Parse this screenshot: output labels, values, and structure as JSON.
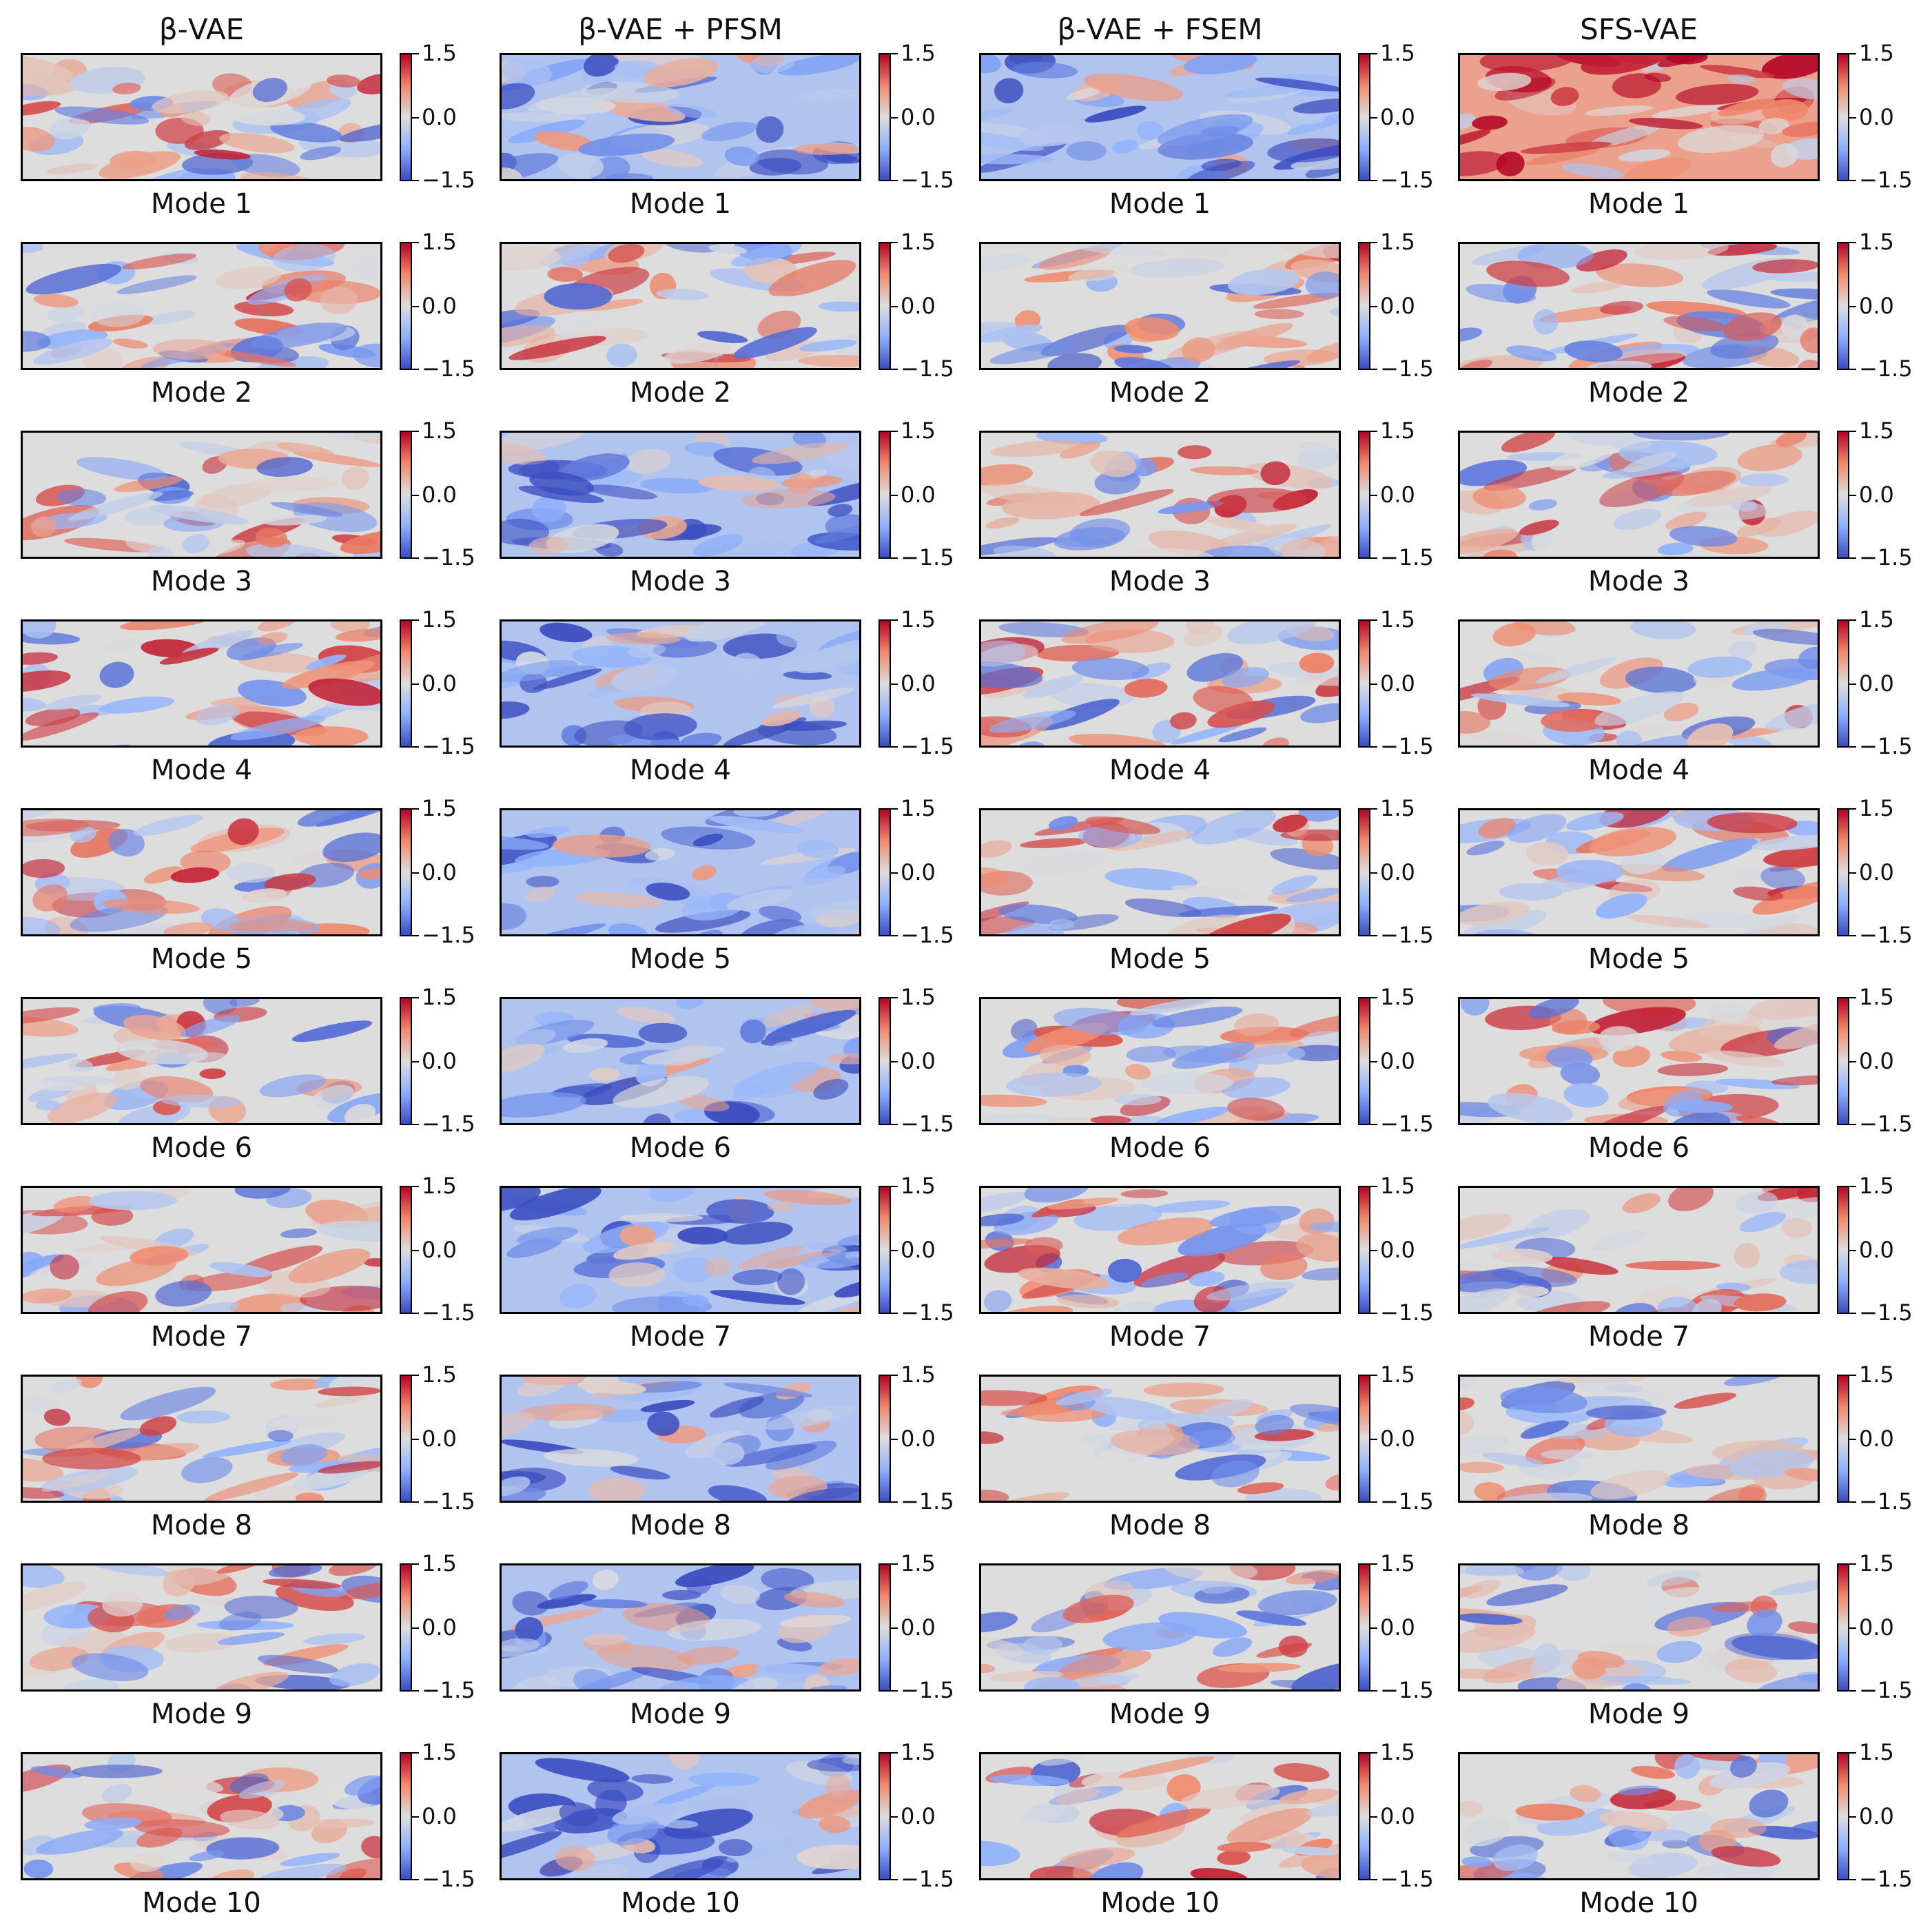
{
  "columns": [
    "β-VAE",
    "β-VAE + PFSM",
    "β-VAE + FSEM",
    "SFS-VAE"
  ],
  "mode_labels": [
    "Mode 1",
    "Mode 2",
    "Mode 3",
    "Mode 4",
    "Mode 5",
    "Mode 6",
    "Mode 7",
    "Mode 8",
    "Mode 9",
    "Mode 10"
  ],
  "colorbar": {
    "ticks": [
      "1.5",
      "0.0",
      "−1.5"
    ],
    "vmin": -1.5,
    "vmax": 1.5,
    "colormap": "coolwarm"
  },
  "chart_data": {
    "type": "heatmap",
    "grid": {
      "columns": 4,
      "rows": 10
    },
    "value_range": [
      -1.5,
      1.5
    ],
    "colormap": "coolwarm",
    "panel_dominant_sign": [
      [
        "mixed",
        "negative",
        "negative",
        "positive"
      ],
      [
        "mixed",
        "mixed",
        "mixed",
        "mixed"
      ],
      [
        "mixed",
        "negative",
        "mixed",
        "mixed"
      ],
      [
        "mixed",
        "negative",
        "mixed",
        "mixed"
      ],
      [
        "mixed",
        "negative",
        "mixed",
        "mixed"
      ],
      [
        "mixed",
        "negative",
        "mixed",
        "mixed"
      ],
      [
        "mixed",
        "negative",
        "mixed",
        "mixed"
      ],
      [
        "mixed",
        "negative",
        "mixed",
        "mixed"
      ],
      [
        "mixed",
        "negative",
        "mixed",
        "mixed"
      ],
      [
        "mixed",
        "negative",
        "mixed",
        "mixed"
      ]
    ]
  }
}
